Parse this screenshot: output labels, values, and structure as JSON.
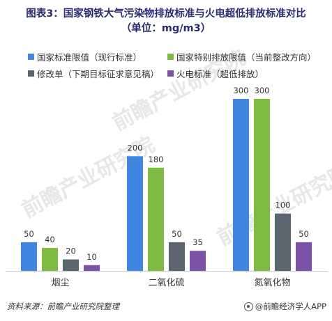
{
  "title_line1": "图表3：国家钢铁大气污染物排放标准与火电超低排放标准对比",
  "title_line2": "（单位：mg/m3）",
  "watermark_text": "前瞻产业研究院",
  "footer": {
    "source": "资料来源：前瞻产业研究院整理",
    "brand": "@前瞻经济学人APP"
  },
  "chart_data": {
    "type": "bar",
    "title": "图表3：国家钢铁大气污染物排放标准与火电超低排放标准对比",
    "subtitle": "（单位：mg/m3）",
    "categories": [
      "烟尘",
      "二氧化硫",
      "氮氧化物"
    ],
    "series": [
      {
        "name": "国家标准限值（现行标准）",
        "color": "#3f86e0",
        "values": [
          50,
          200,
          300
        ]
      },
      {
        "name": "国家特别排放限值（当前整改方向）",
        "color": "#7dbb42",
        "values": [
          40,
          180,
          300
        ]
      },
      {
        "name": "修改单（下期目标征求意见稿）",
        "color": "#5c6670",
        "values": [
          20,
          50,
          100
        ]
      },
      {
        "name": "火电标准（超低排放）",
        "color": "#7b52a8",
        "values": [
          10,
          35,
          50
        ]
      }
    ],
    "ylim": [
      0,
      300
    ],
    "grid": false,
    "legend_position": "top",
    "data_labels": true
  }
}
